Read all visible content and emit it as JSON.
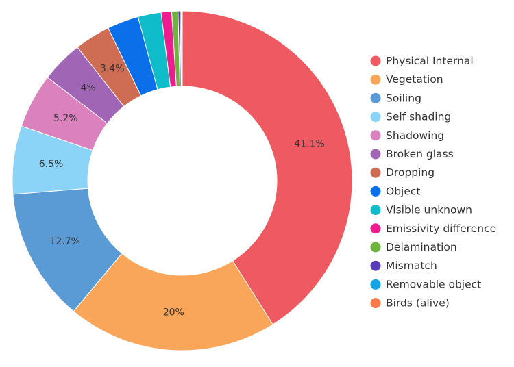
{
  "chart_data": {
    "type": "pie",
    "title": "",
    "series": [
      {
        "name": "Physical Internal",
        "value": 41.1,
        "label": "41.1%",
        "color": "#EF5A62"
      },
      {
        "name": "Vegetation",
        "value": 20.0,
        "label": "20%",
        "color": "#F9A65A"
      },
      {
        "name": "Soiling",
        "value": 12.7,
        "label": "12.7%",
        "color": "#5B9BD5"
      },
      {
        "name": "Self shading",
        "value": 6.5,
        "label": "6.5%",
        "color": "#8BD3F7"
      },
      {
        "name": "Shadowing",
        "value": 5.2,
        "label": "5.2%",
        "color": "#DB82BE"
      },
      {
        "name": "Broken glass",
        "value": 4.0,
        "label": "4%",
        "color": "#A066B5"
      },
      {
        "name": "Dropping",
        "value": 3.4,
        "label": "3.4%",
        "color": "#CF6C54"
      },
      {
        "name": "Object",
        "value": 3.0,
        "label": "",
        "color": "#0A6FE8"
      },
      {
        "name": "Visible unknown",
        "value": 2.2,
        "label": "",
        "color": "#0FBCC9"
      },
      {
        "name": "Emissivity difference",
        "value": 1.0,
        "label": "",
        "color": "#EE1C8E"
      },
      {
        "name": "Delamination",
        "value": 0.6,
        "label": "",
        "color": "#6EB43F"
      },
      {
        "name": "Mismatch",
        "value": 0.2,
        "label": "",
        "color": "#5A3CB8"
      },
      {
        "name": "Removable object",
        "value": 0.1,
        "label": "",
        "color": "#15A4E6"
      },
      {
        "name": "Birds (alive)",
        "value": 0.1,
        "label": "",
        "color": "#FB7A4B"
      }
    ],
    "legend_position": "right"
  }
}
